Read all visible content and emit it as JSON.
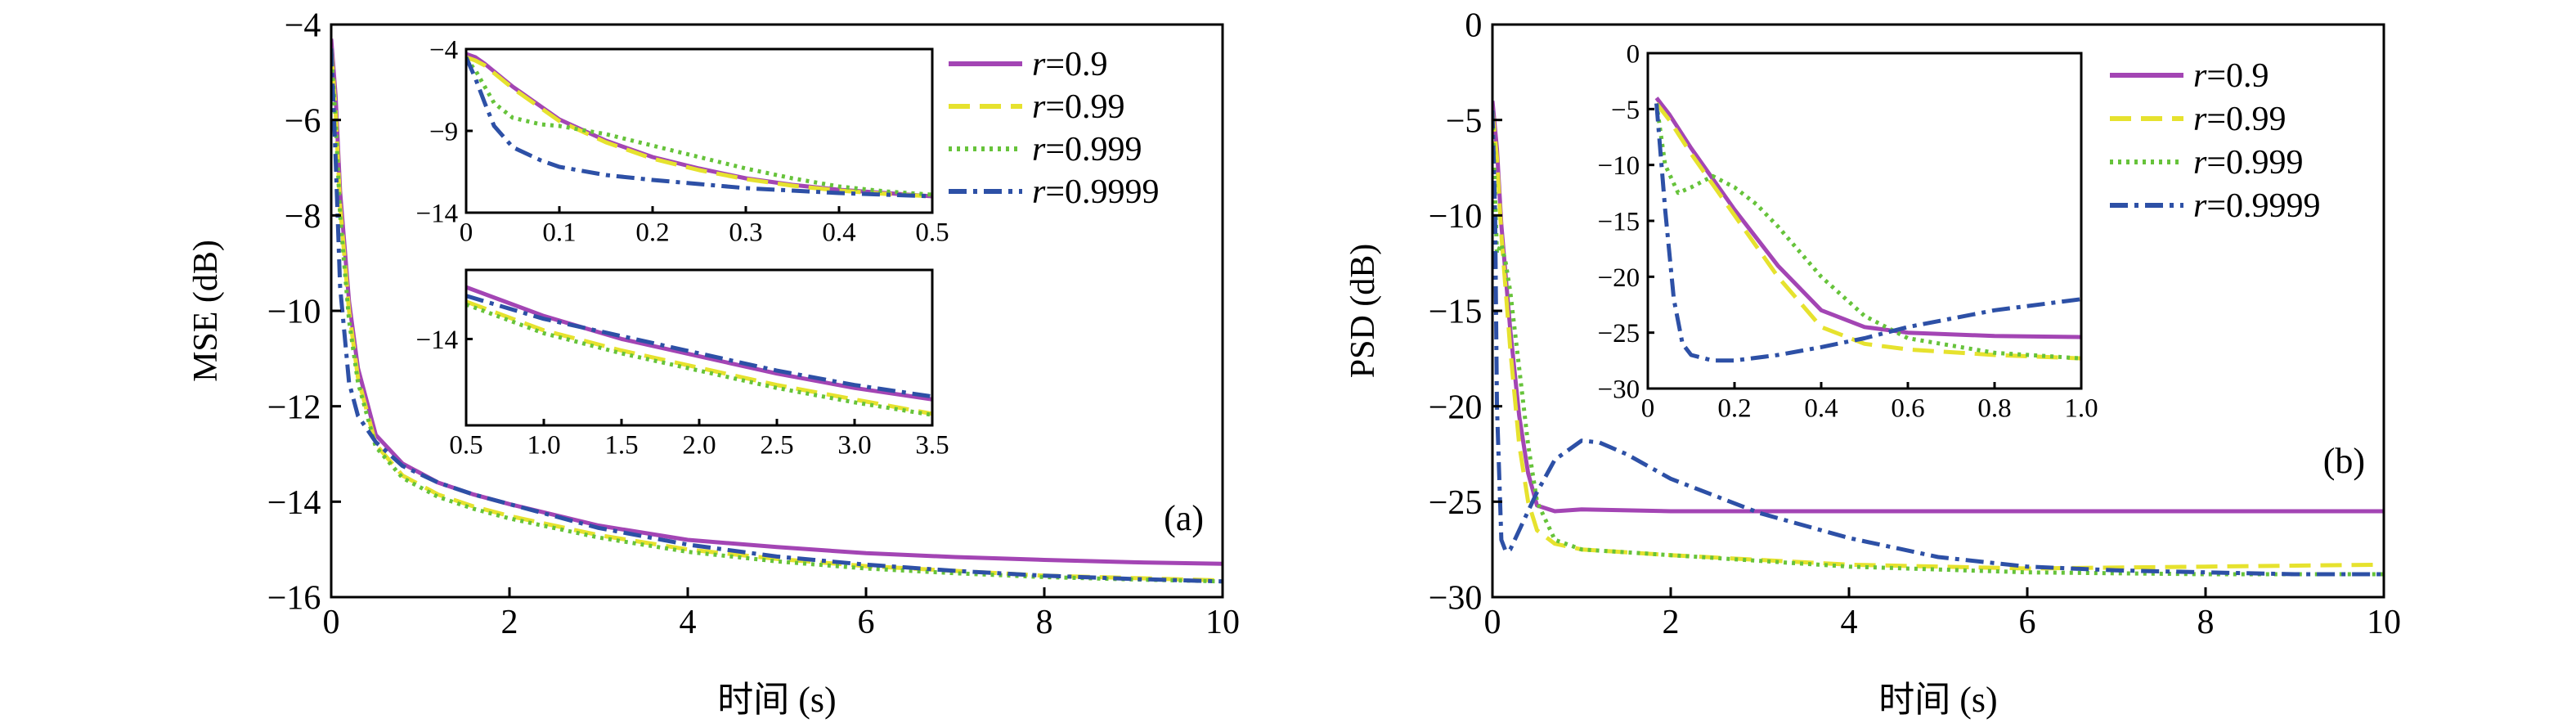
{
  "colors": {
    "r09": "#a345b4",
    "r099": "#e6e22e",
    "r0999": "#66c33a",
    "r09999": "#2d50a6"
  },
  "chart_data": [
    {
      "id": "a",
      "type": "line",
      "panel_label": "(a)",
      "xlabel": "时间 (s)",
      "ylabel": "MSE (dB)",
      "xlim": [
        0,
        10
      ],
      "ylim": [
        -16,
        -4
      ],
      "xticks": [
        0,
        2,
        4,
        6,
        8,
        10
      ],
      "yticks": [
        -16,
        -14,
        -12,
        -10,
        -8,
        -6,
        -4
      ],
      "xtick_labels": [
        "0",
        "2",
        "4",
        "6",
        "8",
        "10"
      ],
      "ytick_labels": [
        "−16",
        "−14",
        "−12",
        "−10",
        "−8",
        "−6",
        "−4"
      ],
      "legend_position": "top-right",
      "grid": false,
      "series": [
        {
          "name_prefix": "r",
          "name_value": "=0.9",
          "color": "#a345b4",
          "dash": "solid",
          "x": [
            0,
            0.05,
            0.1,
            0.2,
            0.3,
            0.5,
            0.8,
            1.2,
            1.6,
            2,
            3,
            4,
            5,
            6,
            7,
            8,
            9,
            10
          ],
          "y": [
            -4.3,
            -5.5,
            -7.5,
            -9.8,
            -11.2,
            -12.6,
            -13.2,
            -13.6,
            -13.85,
            -14.05,
            -14.5,
            -14.8,
            -14.95,
            -15.08,
            -15.16,
            -15.22,
            -15.27,
            -15.3
          ]
        },
        {
          "name_prefix": "r",
          "name_value": "=0.99",
          "color": "#e6e22e",
          "dash": "long-dash",
          "x": [
            0,
            0.05,
            0.1,
            0.2,
            0.3,
            0.5,
            0.8,
            1.2,
            1.6,
            2,
            3,
            4,
            5,
            6,
            7,
            8,
            9,
            10
          ],
          "y": [
            -4.5,
            -5.8,
            -7.8,
            -10.0,
            -11.4,
            -12.8,
            -13.45,
            -13.85,
            -14.1,
            -14.3,
            -14.7,
            -15.0,
            -15.2,
            -15.35,
            -15.45,
            -15.55,
            -15.6,
            -15.65
          ]
        },
        {
          "name_prefix": "r",
          "name_value": "=0.999",
          "color": "#66c33a",
          "dash": "dotted",
          "x": [
            0,
            0.05,
            0.1,
            0.2,
            0.3,
            0.5,
            0.8,
            1.2,
            1.6,
            2,
            3,
            4,
            5,
            6,
            7,
            8,
            9,
            10
          ],
          "y": [
            -4.6,
            -6.0,
            -8.0,
            -10.2,
            -11.5,
            -12.85,
            -13.5,
            -13.9,
            -14.15,
            -14.35,
            -14.75,
            -15.05,
            -15.25,
            -15.4,
            -15.5,
            -15.58,
            -15.63,
            -15.67
          ]
        },
        {
          "name_prefix": "r",
          "name_value": "=0.9999",
          "color": "#2d50a6",
          "dash": "dash-dot",
          "x": [
            0,
            0.05,
            0.1,
            0.2,
            0.3,
            0.5,
            0.8,
            1.2,
            1.6,
            2,
            3,
            4,
            5,
            6,
            7,
            8,
            9,
            10
          ],
          "y": [
            -4.5,
            -6.8,
            -9.5,
            -11.5,
            -12.2,
            -12.75,
            -13.25,
            -13.6,
            -13.85,
            -14.05,
            -14.55,
            -14.9,
            -15.15,
            -15.32,
            -15.45,
            -15.55,
            -15.62,
            -15.67
          ]
        }
      ],
      "insets": [
        {
          "xlim": [
            0,
            0.5
          ],
          "ylim": [
            -14,
            -4
          ],
          "xticks": [
            0,
            0.1,
            0.2,
            0.3,
            0.4,
            0.5
          ],
          "xtick_labels": [
            "0",
            "0.1",
            "0.2",
            "0.3",
            "0.4",
            "0.5"
          ],
          "yticks": [
            -14,
            -9,
            -4
          ],
          "ytick_labels": [
            "−14",
            "−9",
            "−4"
          ],
          "series": [
            {
              "color": "#a345b4",
              "dash": "solid",
              "x": [
                0,
                0.01,
                0.02,
                0.05,
                0.1,
                0.15,
                0.2,
                0.25,
                0.3,
                0.35,
                0.4,
                0.45,
                0.5
              ],
              "y": [
                -4.3,
                -4.5,
                -4.9,
                -6.3,
                -8.3,
                -9.6,
                -10.6,
                -11.3,
                -11.9,
                -12.3,
                -12.6,
                -12.8,
                -13.0
              ]
            },
            {
              "color": "#e6e22e",
              "dash": "long-dash",
              "x": [
                0,
                0.01,
                0.02,
                0.05,
                0.1,
                0.15,
                0.2,
                0.25,
                0.3,
                0.35,
                0.4,
                0.45,
                0.5
              ],
              "y": [
                -4.5,
                -4.7,
                -5.0,
                -6.4,
                -8.4,
                -9.7,
                -10.7,
                -11.4,
                -11.95,
                -12.35,
                -12.65,
                -12.85,
                -13.0
              ]
            },
            {
              "color": "#66c33a",
              "dash": "dotted",
              "x": [
                0,
                0.01,
                0.02,
                0.03,
                0.05,
                0.08,
                0.1,
                0.15,
                0.2,
                0.25,
                0.3,
                0.35,
                0.4,
                0.45,
                0.5
              ],
              "y": [
                -4.6,
                -5.3,
                -6.3,
                -7.3,
                -8.2,
                -8.6,
                -8.7,
                -9.2,
                -9.9,
                -10.6,
                -11.3,
                -11.9,
                -12.4,
                -12.7,
                -12.9
              ]
            },
            {
              "color": "#2d50a6",
              "dash": "dash-dot",
              "x": [
                0,
                0.01,
                0.02,
                0.03,
                0.05,
                0.08,
                0.1,
                0.15,
                0.2,
                0.25,
                0.3,
                0.35,
                0.4,
                0.45,
                0.5
              ],
              "y": [
                -4.5,
                -5.8,
                -7.3,
                -8.7,
                -10.0,
                -10.8,
                -11.2,
                -11.7,
                -12.0,
                -12.25,
                -12.5,
                -12.65,
                -12.8,
                -12.9,
                -13.0
              ]
            }
          ]
        },
        {
          "xlim": [
            0.5,
            3.5
          ],
          "ylim": [
            -15.5,
            -12.8
          ],
          "xticks": [
            0.5,
            1.0,
            1.5,
            2.0,
            2.5,
            3.0,
            3.5
          ],
          "xtick_labels": [
            "0.5",
            "1.0",
            "1.5",
            "2.0",
            "2.5",
            "3.0",
            "3.5"
          ],
          "yticks": [
            -14
          ],
          "ytick_labels": [
            "−14"
          ],
          "series": [
            {
              "color": "#a345b4",
              "dash": "solid",
              "x": [
                0.5,
                1.0,
                1.5,
                2.0,
                2.5,
                3.0,
                3.5
              ],
              "y": [
                -13.1,
                -13.6,
                -14.0,
                -14.3,
                -14.6,
                -14.85,
                -15.05
              ]
            },
            {
              "color": "#e6e22e",
              "dash": "long-dash",
              "x": [
                0.5,
                1.0,
                1.5,
                2.0,
                2.5,
                3.0,
                3.5
              ],
              "y": [
                -13.35,
                -13.85,
                -14.2,
                -14.5,
                -14.8,
                -15.05,
                -15.3
              ]
            },
            {
              "color": "#66c33a",
              "dash": "dotted",
              "x": [
                0.5,
                1.0,
                1.5,
                2.0,
                2.5,
                3.0,
                3.5
              ],
              "y": [
                -13.4,
                -13.9,
                -14.25,
                -14.55,
                -14.85,
                -15.1,
                -15.32
              ]
            },
            {
              "color": "#2d50a6",
              "dash": "dash-dot",
              "x": [
                0.5,
                1.0,
                1.5,
                2.0,
                2.5,
                3.0,
                3.5
              ],
              "y": [
                -13.25,
                -13.65,
                -13.95,
                -14.25,
                -14.55,
                -14.8,
                -15.0
              ]
            }
          ]
        }
      ]
    },
    {
      "id": "b",
      "type": "line",
      "panel_label": "(b)",
      "xlabel": "时间 (s)",
      "ylabel": "PSD (dB)",
      "xlim": [
        0,
        10
      ],
      "ylim": [
        -30,
        0
      ],
      "xticks": [
        0,
        2,
        4,
        6,
        8,
        10
      ],
      "yticks": [
        -30,
        -25,
        -20,
        -15,
        -10,
        -5,
        0
      ],
      "xtick_labels": [
        "0",
        "2",
        "4",
        "6",
        "8",
        "10"
      ],
      "ytick_labels": [
        "−30",
        "−25",
        "−20",
        "−15",
        "−10",
        "−5",
        "0"
      ],
      "legend_position": "top-right",
      "grid": false,
      "series": [
        {
          "name_prefix": "r",
          "name_value": "=0.9",
          "color": "#a345b4",
          "dash": "solid",
          "x": [
            0,
            0.05,
            0.1,
            0.2,
            0.3,
            0.4,
            0.5,
            0.7,
            1,
            2,
            4,
            6,
            8,
            10
          ],
          "y": [
            -4.0,
            -6.5,
            -10.5,
            -16.0,
            -20.5,
            -23.5,
            -25.2,
            -25.5,
            -25.4,
            -25.5,
            -25.5,
            -25.5,
            -25.5,
            -25.5
          ]
        },
        {
          "name_prefix": "r",
          "name_value": "=0.99",
          "color": "#e6e22e",
          "dash": "long-dash",
          "x": [
            0,
            0.05,
            0.1,
            0.2,
            0.3,
            0.4,
            0.5,
            0.7,
            1,
            2,
            4,
            6,
            8,
            10
          ],
          "y": [
            -4.5,
            -7.0,
            -11.0,
            -17.0,
            -22.0,
            -25.0,
            -26.5,
            -27.2,
            -27.5,
            -27.8,
            -28.3,
            -28.5,
            -28.4,
            -28.3
          ]
        },
        {
          "name_prefix": "r",
          "name_value": "=0.999",
          "color": "#66c33a",
          "dash": "dotted",
          "x": [
            0,
            0.05,
            0.1,
            0.15,
            0.2,
            0.3,
            0.4,
            0.5,
            0.7,
            1,
            2,
            4,
            6,
            8,
            10
          ],
          "y": [
            -4.5,
            -12.0,
            -11.5,
            -12.5,
            -14.0,
            -18.0,
            -22.0,
            -25.0,
            -27.0,
            -27.5,
            -27.8,
            -28.4,
            -28.7,
            -28.8,
            -28.8
          ]
        },
        {
          "name_prefix": "r",
          "name_value": "=0.9999",
          "color": "#2d50a6",
          "dash": "dash-dot",
          "x": [
            0,
            0.03,
            0.05,
            0.1,
            0.15,
            0.2,
            0.3,
            0.5,
            0.7,
            1.0,
            1.2,
            1.5,
            2,
            3,
            4,
            5,
            6,
            7,
            8,
            9,
            10
          ],
          "y": [
            -4.5,
            -10.0,
            -20.0,
            -27.0,
            -27.6,
            -27.5,
            -26.5,
            -24.5,
            -22.8,
            -21.8,
            -21.9,
            -22.5,
            -23.8,
            -25.6,
            -26.9,
            -27.9,
            -28.4,
            -28.6,
            -28.7,
            -28.8,
            -28.8
          ]
        }
      ],
      "insets": [
        {
          "xlim": [
            0,
            1.0
          ],
          "ylim": [
            -30,
            0
          ],
          "xticks": [
            0,
            0.2,
            0.4,
            0.6,
            0.8,
            1.0
          ],
          "xtick_labels": [
            "0",
            "0.2",
            "0.4",
            "0.6",
            "0.8",
            "1.0"
          ],
          "yticks": [
            -30,
            -25,
            -20,
            -15,
            -10,
            -5,
            0
          ],
          "ytick_labels": [
            "−30",
            "−25",
            "−20",
            "−15",
            "−10",
            "−5",
            "0"
          ],
          "series": [
            {
              "color": "#a345b4",
              "dash": "solid",
              "x": [
                0.02,
                0.05,
                0.1,
                0.2,
                0.3,
                0.4,
                0.5,
                0.6,
                0.8,
                1.0
              ],
              "y": [
                -4.0,
                -5.5,
                -8.5,
                -14.0,
                -19.0,
                -23.0,
                -24.5,
                -25.0,
                -25.3,
                -25.4
              ]
            },
            {
              "color": "#e6e22e",
              "dash": "long-dash",
              "x": [
                0.02,
                0.05,
                0.1,
                0.2,
                0.3,
                0.4,
                0.5,
                0.6,
                0.8,
                1.0
              ],
              "y": [
                -4.5,
                -6.0,
                -9.0,
                -14.5,
                -20.0,
                -24.5,
                -26.0,
                -26.5,
                -27.0,
                -27.3
              ]
            },
            {
              "color": "#66c33a",
              "dash": "dotted",
              "x": [
                0.02,
                0.04,
                0.07,
                0.1,
                0.15,
                0.2,
                0.25,
                0.3,
                0.4,
                0.5,
                0.6,
                0.8,
                1.0
              ],
              "y": [
                -4.5,
                -10.0,
                -12.5,
                -12.0,
                -11.0,
                -12.0,
                -13.5,
                -15.5,
                -20.0,
                -23.5,
                -25.5,
                -26.8,
                -27.3
              ]
            },
            {
              "color": "#2d50a6",
              "dash": "dash-dot",
              "x": [
                0.02,
                0.04,
                0.06,
                0.08,
                0.1,
                0.15,
                0.2,
                0.3,
                0.4,
                0.5,
                0.6,
                0.8,
                1.0
              ],
              "y": [
                -4.5,
                -14.0,
                -22.0,
                -26.0,
                -27.0,
                -27.5,
                -27.5,
                -27.0,
                -26.3,
                -25.5,
                -24.5,
                -23.0,
                -22.0
              ]
            }
          ]
        }
      ]
    }
  ]
}
